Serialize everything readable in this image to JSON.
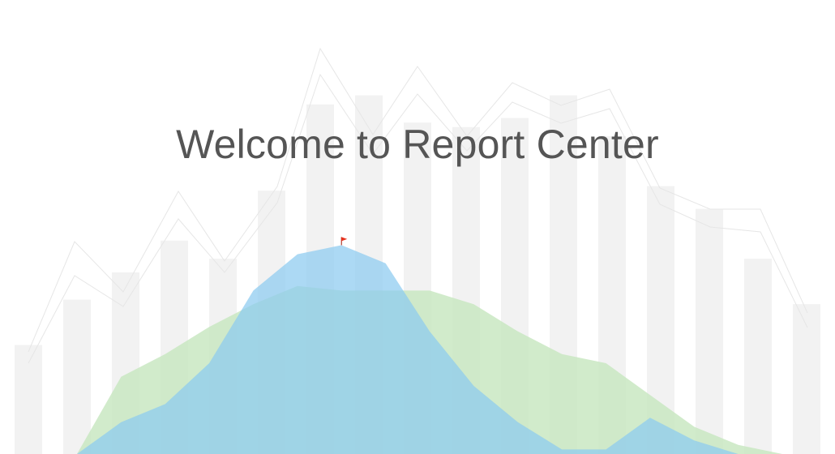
{
  "page": {
    "title": "Welcome to Report Center"
  },
  "colors": {
    "background": "#ffffff",
    "title": "#555555",
    "bars": "#f2f2f2",
    "thin_lines": "#e6e6e6",
    "green_area": "#c7e6bf",
    "blue_area": "#8ccaf0",
    "peak_flag": "#e8321e"
  },
  "decoration": {
    "bar_levels": [
      0.24,
      0.34,
      0.4,
      0.47,
      0.43,
      0.58,
      0.77,
      0.79,
      0.73,
      0.72,
      0.74,
      0.79,
      0.7,
      0.59,
      0.54,
      0.43,
      0.33
    ],
    "green_area_levels": [
      0.0,
      0.17,
      0.22,
      0.28,
      0.33,
      0.37,
      0.36,
      0.36,
      0.36,
      0.33,
      0.27,
      0.22,
      0.2,
      0.13,
      0.06,
      0.02,
      0.0
    ],
    "blue_area_levels": [
      0.0,
      0.07,
      0.11,
      0.2,
      0.36,
      0.44,
      0.46,
      0.42,
      0.27,
      0.15,
      0.07,
      0.01,
      0.01,
      0.08,
      0.03,
      0.0,
      0.0
    ],
    "icons": [
      "peak-flag-icon"
    ]
  }
}
